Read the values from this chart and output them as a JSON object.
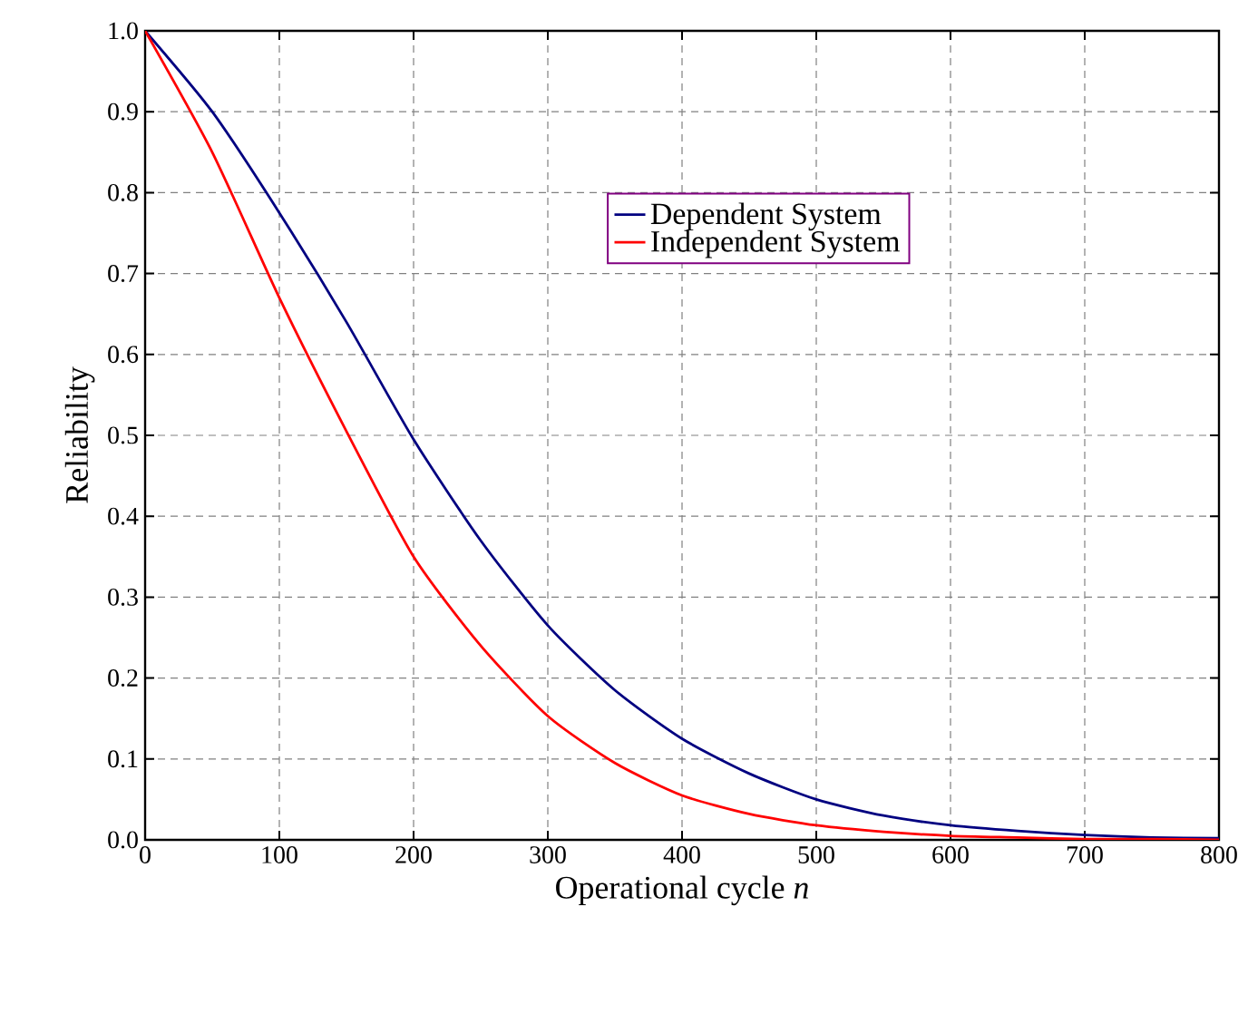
{
  "chart_data": {
    "type": "line",
    "xlabel": "Operational cycle *n*",
    "ylabel": "Reliability",
    "xlim": [
      0,
      800
    ],
    "ylim": [
      0,
      1
    ],
    "xticks": [
      0,
      100,
      200,
      300,
      400,
      500,
      600,
      700,
      800
    ],
    "yticks": [
      {
        "value": 0,
        "label": "0.0"
      },
      {
        "value": 0.1,
        "label": "0.1"
      },
      {
        "value": 0.2,
        "label": "0.2"
      },
      {
        "value": 0.3,
        "label": "0.3"
      },
      {
        "value": 0.4,
        "label": "0.4"
      },
      {
        "value": 0.5,
        "label": "0.5"
      },
      {
        "value": 0.6,
        "label": "0.6"
      },
      {
        "value": 0.7,
        "label": "0.7"
      },
      {
        "value": 0.8,
        "label": "0.8"
      },
      {
        "value": 0.9,
        "label": "0.9"
      },
      {
        "value": 1,
        "label": "1.0"
      }
    ],
    "x": [
      0,
      50,
      100,
      150,
      200,
      250,
      300,
      350,
      400,
      450,
      500,
      550,
      600,
      650,
      700,
      750,
      800
    ],
    "series": [
      {
        "name": "Dependent System",
        "color": "#000080",
        "values": [
          1.0,
          0.9,
          0.775,
          0.64,
          0.495,
          0.37,
          0.265,
          0.185,
          0.125,
          0.082,
          0.05,
          0.03,
          0.018,
          0.011,
          0.006,
          0.003,
          0.002
        ]
      },
      {
        "name": "Independent System",
        "color": "#ff0000",
        "values": [
          1.0,
          0.85,
          0.67,
          0.505,
          0.35,
          0.24,
          0.153,
          0.095,
          0.055,
          0.032,
          0.018,
          0.01,
          0.005,
          0.003,
          0.001,
          0.001,
          0.0
        ]
      }
    ],
    "grid": true,
    "legend": "top right",
    "line_style": "solid"
  }
}
